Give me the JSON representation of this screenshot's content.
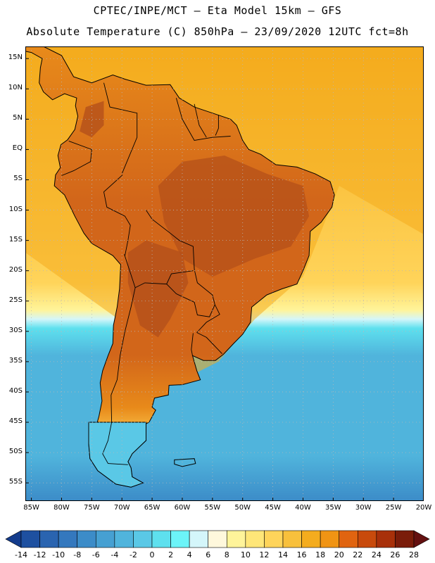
{
  "header": {
    "line1": "CPTEC/INPE/MCT –  Eta Model 15km – GFS",
    "line2": "Absolute Temperature (C) 850hPa – 23/09/2020 12UTC fct=8h"
  },
  "axes": {
    "lat_labels": [
      "15N",
      "10N",
      "5N",
      "EQ",
      "5S",
      "10S",
      "15S",
      "20S",
      "25S",
      "30S",
      "35S",
      "40S",
      "45S",
      "50S",
      "55S"
    ],
    "lat_values": [
      15,
      10,
      5,
      0,
      -5,
      -10,
      -15,
      -20,
      -25,
      -30,
      -35,
      -40,
      -45,
      -50,
      -55
    ],
    "lon_labels": [
      "85W",
      "80W",
      "75W",
      "70W",
      "65W",
      "60W",
      "55W",
      "50W",
      "45W",
      "40W",
      "35W",
      "30W",
      "25W",
      "20W"
    ],
    "lon_values": [
      -85,
      -80,
      -75,
      -70,
      -65,
      -60,
      -55,
      -50,
      -45,
      -40,
      -35,
      -30,
      -25,
      -20
    ],
    "lat_range": [
      -58,
      17
    ],
    "lon_range": [
      -86,
      -20
    ]
  },
  "colorbar": {
    "labels": [
      "-14",
      "-12",
      "-10",
      "-8",
      "-6",
      "-4",
      "-2",
      "0",
      "2",
      "4",
      "6",
      "8",
      "10",
      "12",
      "14",
      "16",
      "18",
      "20",
      "22",
      "24",
      "26",
      "28"
    ],
    "colors": [
      "#143c8c",
      "#1e50a0",
      "#2a64b0",
      "#3478be",
      "#3c8cc8",
      "#46a0d2",
      "#50b4dc",
      "#5ac8e6",
      "#5ee0ee",
      "#6cf4f8",
      "#d4f6fa",
      "#fff8dc",
      "#fff49a",
      "#ffe678",
      "#ffd45a",
      "#f8c03c",
      "#f4ac1e",
      "#f09414",
      "#e06410",
      "#c84a0c",
      "#a8300a",
      "#7a1c0a",
      "#641010"
    ]
  },
  "map_colors": {
    "ocean_cold_deep": "#3c8cc8",
    "ocean_cold": "#50b4dc",
    "ocean_cyan": "#5ee0ee",
    "ocean_light": "#d4f6fa",
    "ocean_pale": "#fff49a",
    "ocean_warm": "#ffd45a",
    "ocean_orange": "#f4ac1e",
    "land_warm": "#e88a1a",
    "land_hot": "#d2661a",
    "land_very_hot": "#b4501a",
    "land_cold": "#5ac8e6",
    "coast": "#000000",
    "grid": "#b8b8b8"
  }
}
